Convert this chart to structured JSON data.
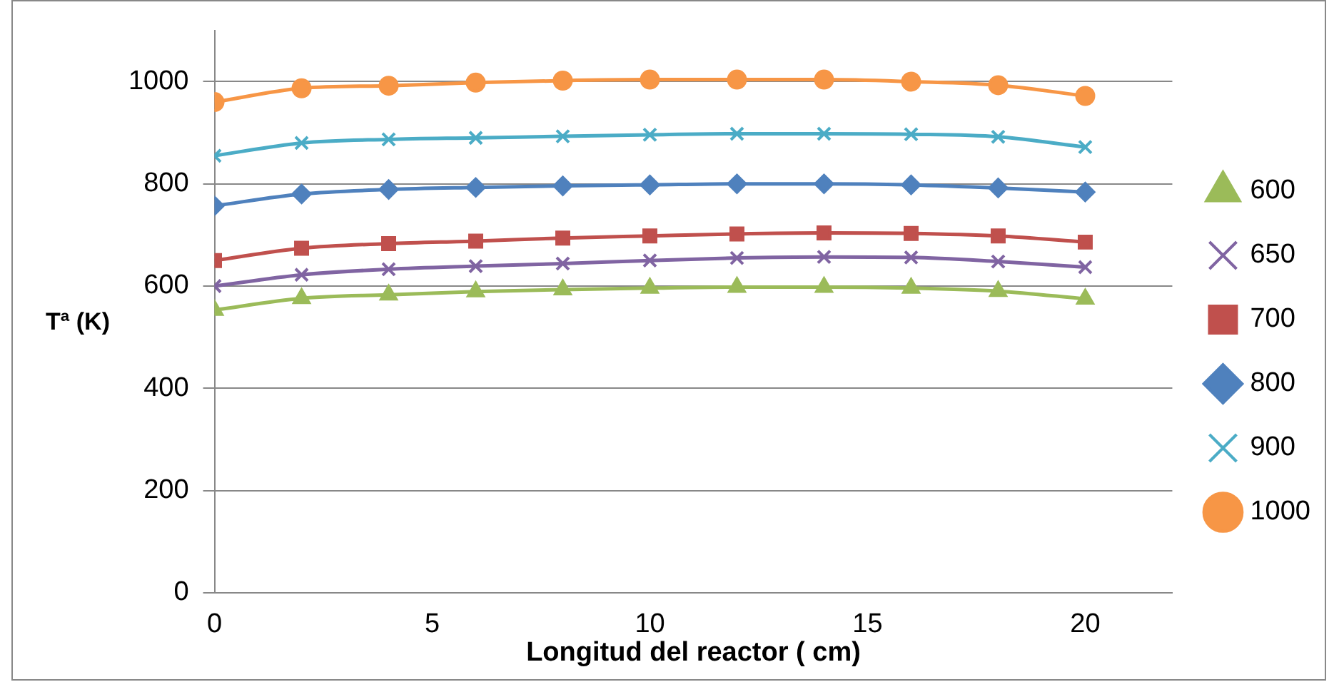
{
  "chart_data": {
    "type": "line",
    "xlabel": "Longitud del reactor ( cm)",
    "ylabel": "Tª (K)",
    "x": [
      0,
      2,
      4,
      6,
      8,
      10,
      12,
      14,
      16,
      18,
      20
    ],
    "xlim": [
      0,
      22
    ],
    "xticks": [
      0,
      5,
      10,
      15,
      20
    ],
    "ylim": [
      0,
      1100
    ],
    "yticks": [
      0,
      200,
      400,
      600,
      800,
      1000
    ],
    "grid": "y",
    "legend": "right",
    "series": [
      {
        "name": "600",
        "color": "#9bbb59",
        "marker": "triangle",
        "values": [
          553,
          576,
          583,
          589,
          593,
          596,
          598,
          598,
          596,
          590,
          575
        ]
      },
      {
        "name": "650",
        "color": "#8064a2",
        "marker": "cross",
        "values": [
          600,
          622,
          633,
          639,
          644,
          650,
          655,
          657,
          656,
          648,
          637
        ]
      },
      {
        "name": "700",
        "color": "#c0504d",
        "marker": "square",
        "values": [
          650,
          674,
          683,
          688,
          694,
          698,
          702,
          704,
          703,
          698,
          686
        ]
      },
      {
        "name": "800",
        "color": "#4f81bd",
        "marker": "diamond",
        "values": [
          757,
          780,
          789,
          793,
          796,
          798,
          800,
          800,
          798,
          792,
          784
        ]
      },
      {
        "name": "900",
        "color": "#4bacc6",
        "marker": "cross",
        "values": [
          855,
          880,
          887,
          890,
          893,
          896,
          898,
          898,
          897,
          892,
          872
        ]
      },
      {
        "name": "1000",
        "color": "#f79646",
        "marker": "circle",
        "values": [
          960,
          987,
          992,
          998,
          1002,
          1004,
          1004,
          1004,
          1000,
          993,
          972
        ]
      }
    ]
  }
}
